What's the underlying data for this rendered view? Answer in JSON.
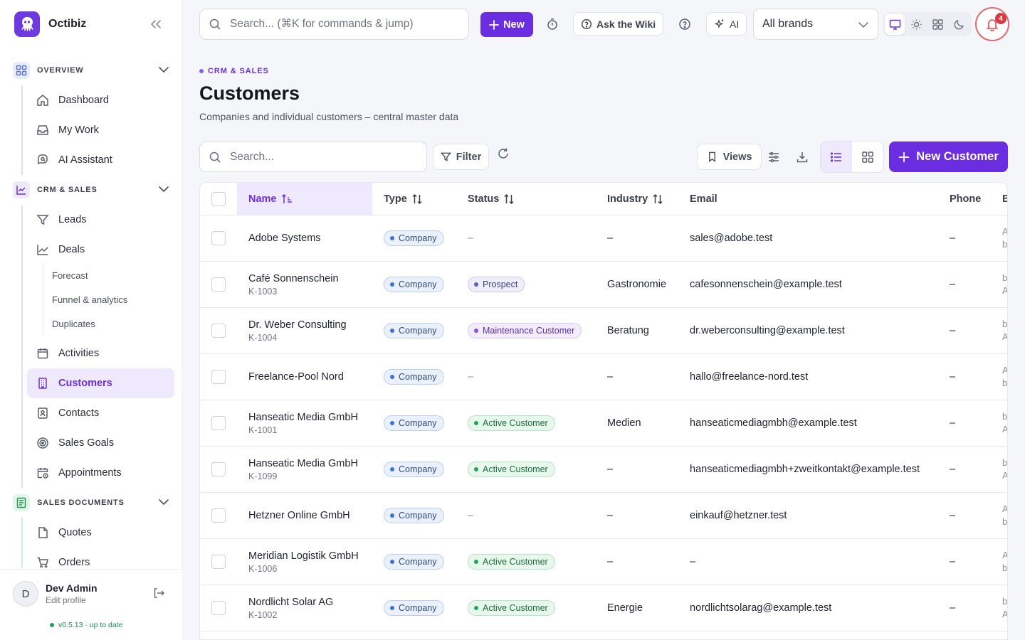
{
  "app": {
    "name": "Octibiz"
  },
  "sidebar": {
    "sections": [
      {
        "label": "OVERVIEW",
        "items": [
          {
            "label": "Dashboard"
          },
          {
            "label": "My Work"
          },
          {
            "label": "AI Assistant"
          }
        ]
      },
      {
        "label": "CRM & SALES",
        "items": [
          {
            "label": "Leads"
          },
          {
            "label": "Deals",
            "sub": [
              {
                "label": "Forecast"
              },
              {
                "label": "Funnel & analytics"
              },
              {
                "label": "Duplicates"
              }
            ]
          },
          {
            "label": "Activities"
          },
          {
            "label": "Customers",
            "active": true
          },
          {
            "label": "Contacts"
          },
          {
            "label": "Sales Goals"
          },
          {
            "label": "Appointments"
          }
        ]
      },
      {
        "label": "SALES DOCUMENTS",
        "items": [
          {
            "label": "Quotes"
          },
          {
            "label": "Orders"
          }
        ]
      }
    ],
    "user": {
      "initial": "D",
      "name": "Dev Admin",
      "sub": "Edit profile"
    },
    "version": "v0.5.13 · up to date"
  },
  "topbar": {
    "search_placeholder": "Search... (⌘K for commands & jump)",
    "new_label": "New",
    "wiki_label": "Ask the Wiki",
    "ai_label": "AI",
    "brand_select": "All brands",
    "notifications_count": "4"
  },
  "page": {
    "eyebrow": "CRM & SALES",
    "title": "Customers",
    "subtitle": "Companies and individual customers – central master data",
    "search_placeholder": "Search...",
    "filter_label": "Filter",
    "views_label": "Views",
    "new_customer_label": "New Customer"
  },
  "table": {
    "columns": [
      "Name",
      "Type",
      "Status",
      "Industry",
      "Email",
      "Phone",
      "B"
    ],
    "rows": [
      {
        "name": "Adobe Systems",
        "id": "",
        "type": "Company",
        "status": "–",
        "industry": "–",
        "email": "sales@adobe.test",
        "phone": "–",
        "b1": "A",
        "b2": "b"
      },
      {
        "name": "Café Sonnenschein",
        "id": "K-1003",
        "type": "Company",
        "status": "Prospect",
        "industry": "Gastronomie",
        "email": "cafesonnenschein@example.test",
        "phone": "–",
        "b1": "b",
        "b2": "A"
      },
      {
        "name": "Dr. Weber Consulting",
        "id": "K-1004",
        "type": "Company",
        "status": "Maintenance Customer",
        "industry": "Beratung",
        "email": "dr.weberconsulting@example.test",
        "phone": "–",
        "b1": "b",
        "b2": "A"
      },
      {
        "name": "Freelance-Pool Nord",
        "id": "",
        "type": "Company",
        "status": "–",
        "industry": "–",
        "email": "hallo@freelance-nord.test",
        "phone": "–",
        "b1": "A",
        "b2": "b"
      },
      {
        "name": "Hanseatic Media GmbH",
        "id": "K-1001",
        "type": "Company",
        "status": "Active Customer",
        "industry": "Medien",
        "email": "hanseaticmediagmbh@example.test",
        "phone": "–",
        "b1": "b",
        "b2": "A"
      },
      {
        "name": "Hanseatic Media GmbH",
        "id": "K-1099",
        "type": "Company",
        "status": "Active Customer",
        "industry": "–",
        "email": "hanseaticmediagmbh+zweitkontakt@example.test",
        "phone": "–",
        "b1": "b",
        "b2": "A"
      },
      {
        "name": "Hetzner Online GmbH",
        "id": "",
        "type": "Company",
        "status": "–",
        "industry": "–",
        "email": "einkauf@hetzner.test",
        "phone": "–",
        "b1": "A",
        "b2": "b"
      },
      {
        "name": "Meridian Logistik GmbH",
        "id": "K-1006",
        "type": "Company",
        "status": "Active Customer",
        "industry": "–",
        "email": "–",
        "phone": "–",
        "b1": "A",
        "b2": "b"
      },
      {
        "name": "Nordlicht Solar AG",
        "id": "K-1002",
        "type": "Company",
        "status": "Active Customer",
        "industry": "Energie",
        "email": "nordlichtsolarag@example.test",
        "phone": "–",
        "b1": "b",
        "b2": "A"
      }
    ]
  }
}
